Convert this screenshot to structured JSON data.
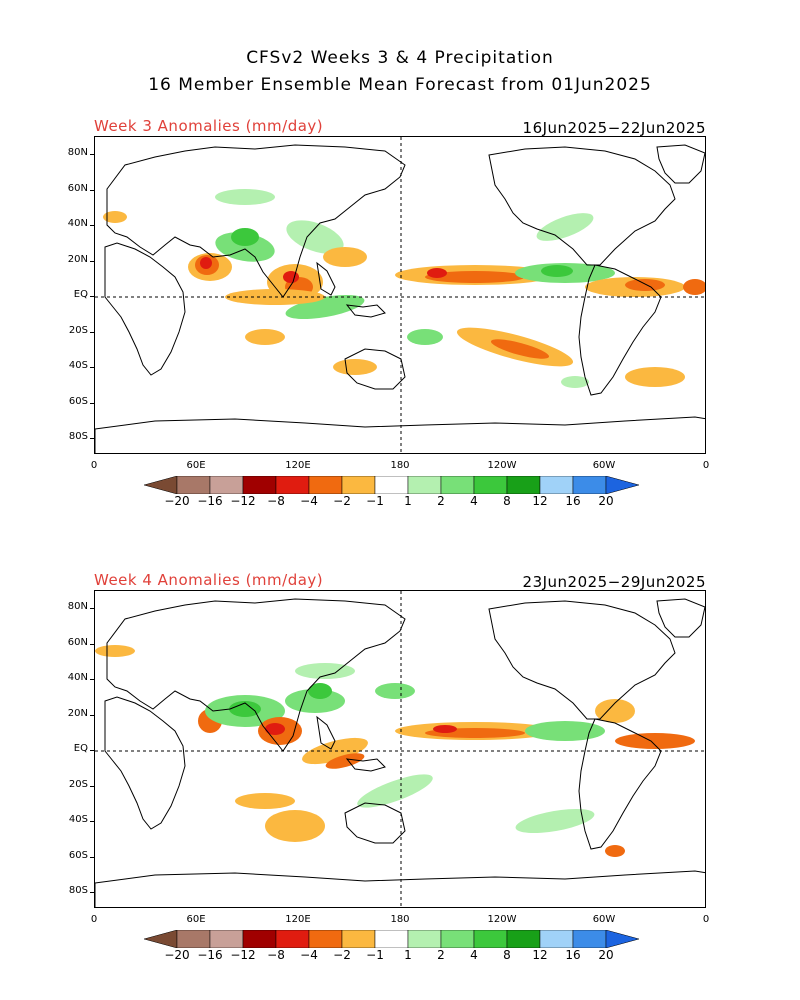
{
  "header": {
    "title_line1": "CFSv2 Weeks 3 & 4 Precipitation",
    "title_line2": "16 Member Ensemble Mean Forecast from 01Jun2025"
  },
  "panels": [
    {
      "label": "Week 3 Anomalies (mm/day)",
      "dates": "16Jun2025−22Jun2025"
    },
    {
      "label": "Week 4 Anomalies (mm/day)",
      "dates": "23Jun2025−29Jun2025"
    }
  ],
  "lat_labels": [
    "80N",
    "60N",
    "40N",
    "20N",
    "EQ",
    "20S",
    "40S",
    "60S",
    "80S"
  ],
  "lon_labels": [
    "0",
    "60E",
    "120E",
    "180",
    "120W",
    "60W",
    "0"
  ],
  "colorbar": {
    "labels": [
      "−20",
      "−16",
      "−12",
      "−8",
      "−4",
      "−2",
      "−1",
      "1",
      "2",
      "4",
      "8",
      "12",
      "16",
      "20"
    ],
    "colors": [
      "#7a4a33",
      "#a87868",
      "#c8a098",
      "#a00000",
      "#e01c10",
      "#f06a10",
      "#fbb840",
      "#ffffff",
      "#b4f0b0",
      "#78e078",
      "#3cc83c",
      "#18a018",
      "#a0d2f8",
      "#3c8ce8",
      "#1c64e0"
    ]
  },
  "colors": {
    "dry_strong": "#e01c10",
    "dry_mid": "#f06a10",
    "dry_light": "#fbb840",
    "wet_light": "#b4f0b0",
    "wet_mid": "#78e078",
    "wet_strong": "#3cc83c",
    "title_red": "#e0413a"
  }
}
